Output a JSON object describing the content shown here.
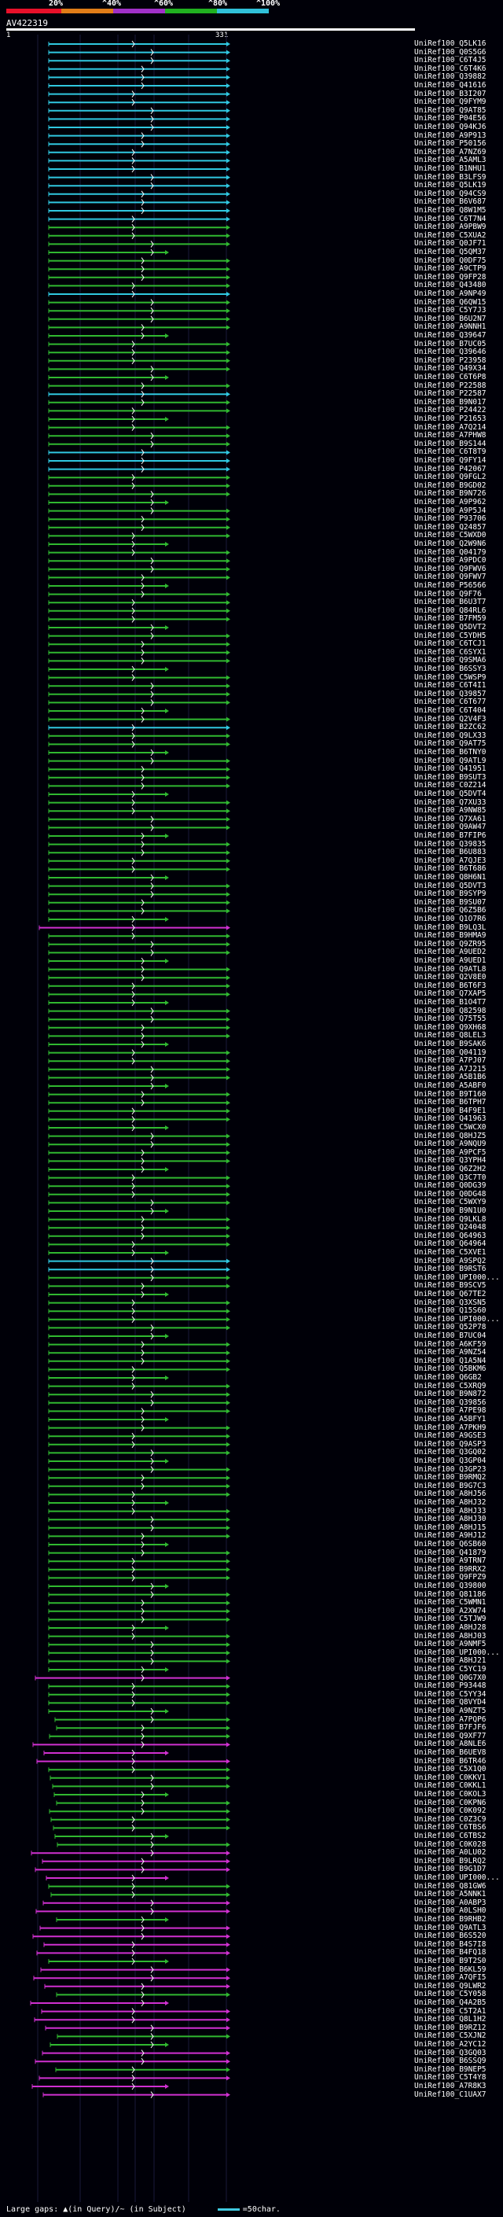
{
  "scale": {
    "labels": [
      "20%",
      "^40%",
      "^60%",
      "^80%",
      "^100%"
    ],
    "colors": [
      "#e8102a",
      "#e07c18",
      "#a030c8",
      "#20b020",
      "#30c0d8"
    ]
  },
  "query": {
    "id": "AV422319",
    "start": "1",
    "end": "331"
  },
  "colors": {
    "cyan": "#30c8e0",
    "green": "#30b830",
    "magenta": "#d030d0",
    "background": "#000008"
  },
  "hits": [
    {
      "label": "UniRef100_Q5LK16",
      "color": "cyan"
    },
    {
      "label": "UniRef100_Q0S5G6",
      "color": "cyan"
    },
    {
      "label": "UniRef100_C6T4J5",
      "color": "cyan"
    },
    {
      "label": "UniRef100_C6T4K6",
      "color": "cyan"
    },
    {
      "label": "UniRef100_Q39882",
      "color": "cyan"
    },
    {
      "label": "UniRef100_Q41616",
      "color": "cyan"
    },
    {
      "label": "UniRef100_B3I207",
      "color": "cyan"
    },
    {
      "label": "UniRef100_Q9FYM9",
      "color": "cyan"
    },
    {
      "label": "UniRef100_Q9AT85",
      "color": "cyan"
    },
    {
      "label": "UniRef100_P04E56",
      "color": "cyan"
    },
    {
      "label": "UniRef100_Q94KJ6",
      "color": "cyan"
    },
    {
      "label": "UniRef100_A9P913",
      "color": "cyan"
    },
    {
      "label": "UniRef100_P50156",
      "color": "cyan"
    },
    {
      "label": "UniRef100_A7NZ69",
      "color": "cyan"
    },
    {
      "label": "UniRef100_A5AML3",
      "color": "cyan"
    },
    {
      "label": "UniRef100_B1NHU1",
      "color": "cyan"
    },
    {
      "label": "UniRef100_B3LFS9",
      "color": "cyan"
    },
    {
      "label": "UniRef100_Q5LK19",
      "color": "cyan"
    },
    {
      "label": "UniRef100_Q94CS9",
      "color": "cyan"
    },
    {
      "label": "UniRef100_B6V687",
      "color": "cyan"
    },
    {
      "label": "UniRef100_Q8W1M5",
      "color": "cyan"
    },
    {
      "label": "UniRef100_C6T7N4",
      "color": "cyan"
    },
    {
      "label": "UniRef100_A9PBW9",
      "color": "green"
    },
    {
      "label": "UniRef100_C5XUA2",
      "color": "green"
    },
    {
      "label": "UniRef100_Q0JF71",
      "color": "green"
    },
    {
      "label": "UniRef100_Q5QM37",
      "color": "green"
    },
    {
      "label": "UniRef100_Q0DF75",
      "color": "green"
    },
    {
      "label": "UniRef100_A9CTP9",
      "color": "green"
    },
    {
      "label": "UniRef100_Q9FP28",
      "color": "green"
    },
    {
      "label": "UniRef100_Q43480",
      "color": "green"
    },
    {
      "label": "UniRef100_A9NP49",
      "color": "cyan"
    },
    {
      "label": "UniRef100_Q6QW15",
      "color": "green"
    },
    {
      "label": "UniRef100_C5Y7J3",
      "color": "green"
    },
    {
      "label": "UniRef100_B6U2N7",
      "color": "green"
    },
    {
      "label": "UniRef100_A9NNH1",
      "color": "green"
    },
    {
      "label": "UniRef100_Q39647",
      "color": "green"
    },
    {
      "label": "UniRef100_B7UC05",
      "color": "green"
    },
    {
      "label": "UniRef100_Q39646",
      "color": "green"
    },
    {
      "label": "UniRef100_P23958",
      "color": "green"
    },
    {
      "label": "UniRef100_Q49X34",
      "color": "green"
    },
    {
      "label": "UniRef100_C6T6P8",
      "color": "green"
    },
    {
      "label": "UniRef100_P22588",
      "color": "green"
    },
    {
      "label": "UniRef100_P22587",
      "color": "cyan"
    },
    {
      "label": "UniRef100_B9N017",
      "color": "green"
    },
    {
      "label": "UniRef100_P24422",
      "color": "green"
    },
    {
      "label": "UniRef100_P21653",
      "color": "green"
    },
    {
      "label": "UniRef100_A7Q214",
      "color": "green"
    },
    {
      "label": "UniRef100_A7PHW8",
      "color": "green"
    },
    {
      "label": "UniRef100_B9S144",
      "color": "green"
    },
    {
      "label": "UniRef100_C6T8T9",
      "color": "cyan"
    },
    {
      "label": "UniRef100_Q9FY14",
      "color": "cyan"
    },
    {
      "label": "UniRef100_P42067",
      "color": "cyan"
    },
    {
      "label": "UniRef100_Q9FGL2",
      "color": "green"
    },
    {
      "label": "UniRef100_B9GD02",
      "color": "green"
    },
    {
      "label": "UniRef100_B9N726",
      "color": "green"
    },
    {
      "label": "UniRef100_A9P962",
      "color": "green"
    },
    {
      "label": "UniRef100_A9P5J4",
      "color": "green"
    },
    {
      "label": "UniRef100_P93706",
      "color": "green"
    },
    {
      "label": "UniRef100_Q24857",
      "color": "green"
    },
    {
      "label": "UniRef100_C5WXD0",
      "color": "green"
    },
    {
      "label": "UniRef100_Q2W9N6",
      "color": "green"
    },
    {
      "label": "UniRef100_Q04179",
      "color": "green"
    },
    {
      "label": "UniRef100_A9PDC0",
      "color": "green"
    },
    {
      "label": "UniRef100_Q9FWV6",
      "color": "green"
    },
    {
      "label": "UniRef100_Q9FWV7",
      "color": "green"
    },
    {
      "label": "UniRef100_P56566",
      "color": "green"
    },
    {
      "label": "UniRef100_Q9F76",
      "color": "green"
    },
    {
      "label": "UniRef100_B6U3T7",
      "color": "green"
    },
    {
      "label": "UniRef100_Q84RL6",
      "color": "green"
    },
    {
      "label": "UniRef100_B7FM59",
      "color": "green"
    },
    {
      "label": "UniRef100_Q5DVT2",
      "color": "green"
    },
    {
      "label": "UniRef100_C5YDH5",
      "color": "green"
    },
    {
      "label": "UniRef100_C6TCJ1",
      "color": "green"
    },
    {
      "label": "UniRef100_C6SYX1",
      "color": "green"
    },
    {
      "label": "UniRef100_Q9SMA6",
      "color": "green"
    },
    {
      "label": "UniRef100_B6SSY3",
      "color": "green"
    },
    {
      "label": "UniRef100_C5WSP9",
      "color": "green"
    },
    {
      "label": "UniRef100_C6T4I1",
      "color": "green"
    },
    {
      "label": "UniRef100_Q39857",
      "color": "green"
    },
    {
      "label": "UniRef100_C6T677",
      "color": "green"
    },
    {
      "label": "UniRef100_C6T404",
      "color": "green"
    },
    {
      "label": "UniRef100_Q2V4F3",
      "color": "green"
    },
    {
      "label": "UniRef100_B2ZC62",
      "color": "cyan"
    },
    {
      "label": "UniRef100_Q9LX33",
      "color": "green"
    },
    {
      "label": "UniRef100_Q9AT75",
      "color": "green"
    },
    {
      "label": "UniRef100_B6TNY0",
      "color": "green"
    },
    {
      "label": "UniRef100_Q9ATL9",
      "color": "green"
    },
    {
      "label": "UniRef100_Q41951",
      "color": "green"
    },
    {
      "label": "UniRef100_B9SUT3",
      "color": "green"
    },
    {
      "label": "UniRef100_C0Z214",
      "color": "green"
    },
    {
      "label": "UniRef100_Q5DVT4",
      "color": "green"
    },
    {
      "label": "UniRef100_Q7XU33",
      "color": "green"
    },
    {
      "label": "UniRef100_A9NW85",
      "color": "green"
    },
    {
      "label": "UniRef100_Q7XA61",
      "color": "green"
    },
    {
      "label": "UniRef100_Q9AW47",
      "color": "green"
    },
    {
      "label": "UniRef100_B7FIP6",
      "color": "green"
    },
    {
      "label": "UniRef100_Q39835",
      "color": "green"
    },
    {
      "label": "UniRef100_B6U883",
      "color": "green"
    },
    {
      "label": "UniRef100_A7QJE3",
      "color": "green"
    },
    {
      "label": "UniRef100_B6T686",
      "color": "green"
    },
    {
      "label": "UniRef100_Q8H6N1",
      "color": "green"
    },
    {
      "label": "UniRef100_Q5DVT3",
      "color": "green"
    },
    {
      "label": "UniRef100_B9SYP9",
      "color": "green"
    },
    {
      "label": "UniRef100_B9SU07",
      "color": "green"
    },
    {
      "label": "UniRef100_Q6Z5B6",
      "color": "green"
    },
    {
      "label": "UniRef100_Q1O7R6",
      "color": "green"
    },
    {
      "label": "UniRef100_B9LQ3L",
      "color": "magenta"
    },
    {
      "label": "UniRef100_B9HMA9",
      "color": "green"
    },
    {
      "label": "UniRef100_Q9ZR95",
      "color": "green"
    },
    {
      "label": "UniRef100_A9UED2",
      "color": "green"
    },
    {
      "label": "UniRef100_A9UED1",
      "color": "green"
    },
    {
      "label": "UniRef100_Q9ATL8",
      "color": "green"
    },
    {
      "label": "UniRef100_Q2V8E0",
      "color": "green"
    },
    {
      "label": "UniRef100_B6T6F3",
      "color": "green"
    },
    {
      "label": "UniRef100_Q7XAP5",
      "color": "green"
    },
    {
      "label": "UniRef100_B1O4T7",
      "color": "green"
    },
    {
      "label": "UniRef100_Q82598",
      "color": "green"
    },
    {
      "label": "UniRef100_Q75T55",
      "color": "green"
    },
    {
      "label": "UniRef100_Q9XH68",
      "color": "green"
    },
    {
      "label": "UniRef100_Q8LEL3",
      "color": "green"
    },
    {
      "label": "UniRef100_B9SAK6",
      "color": "green"
    },
    {
      "label": "UniRef100_Q04119",
      "color": "green"
    },
    {
      "label": "UniRef100_A7PJ07",
      "color": "green"
    },
    {
      "label": "UniRef100_A7J215",
      "color": "green"
    },
    {
      "label": "UniRef100_A5B1B6",
      "color": "green"
    },
    {
      "label": "UniRef100_A5ABF0",
      "color": "green"
    },
    {
      "label": "UniRef100_B9T160",
      "color": "green"
    },
    {
      "label": "UniRef100_B6TPH7",
      "color": "green"
    },
    {
      "label": "UniRef100_B4F9E1",
      "color": "green"
    },
    {
      "label": "UniRef100_Q41963",
      "color": "green"
    },
    {
      "label": "UniRef100_C5WCX0",
      "color": "green"
    },
    {
      "label": "UniRef100_Q8HJZ5",
      "color": "green"
    },
    {
      "label": "UniRef100_A9NQU9",
      "color": "green"
    },
    {
      "label": "UniRef100_A9PCF5",
      "color": "green"
    },
    {
      "label": "UniRef100_Q3YPH4",
      "color": "green"
    },
    {
      "label": "UniRef100_Q6Z2H2",
      "color": "green"
    },
    {
      "label": "UniRef100_Q3C7T0",
      "color": "green"
    },
    {
      "label": "UniRef100_Q0DG39",
      "color": "green"
    },
    {
      "label": "UniRef100_Q0DG48",
      "color": "green"
    },
    {
      "label": "UniRef100_C5WXY9",
      "color": "green"
    },
    {
      "label": "UniRef100_B9N1U0",
      "color": "green"
    },
    {
      "label": "UniRef100_Q9LKL8",
      "color": "green"
    },
    {
      "label": "UniRef100_Q24048",
      "color": "green"
    },
    {
      "label": "UniRef100_Q64963",
      "color": "green"
    },
    {
      "label": "UniRef100_Q64964",
      "color": "green"
    },
    {
      "label": "UniRef100_C5XVE1",
      "color": "green"
    },
    {
      "label": "UniRef100_A9SPQ2",
      "color": "cyan"
    },
    {
      "label": "UniRef100_B9RST6",
      "color": "cyan"
    },
    {
      "label": "UniRef100_UPI000...",
      "color": "green"
    },
    {
      "label": "UniRef100_B9SCV5",
      "color": "green"
    },
    {
      "label": "UniRef100_Q67TE2",
      "color": "green"
    },
    {
      "label": "UniRef100_Q3XSN5",
      "color": "green"
    },
    {
      "label": "UniRef100_Q15S60",
      "color": "green"
    },
    {
      "label": "UniRef100_UPI000...",
      "color": "green"
    },
    {
      "label": "UniRef100_Q52P78",
      "color": "green"
    },
    {
      "label": "UniRef100_B7UC04",
      "color": "green"
    },
    {
      "label": "UniRef100_A6KF59",
      "color": "green"
    },
    {
      "label": "UniRef100_A9NZ54",
      "color": "green"
    },
    {
      "label": "UniRef100_Q1A5N4",
      "color": "green"
    },
    {
      "label": "UniRef100_Q5BKM6",
      "color": "green"
    },
    {
      "label": "UniRef100_Q6GB2",
      "color": "green"
    },
    {
      "label": "UniRef100_C5XRQ9",
      "color": "green"
    },
    {
      "label": "UniRef100_B9N872",
      "color": "green"
    },
    {
      "label": "UniRef100_Q39856",
      "color": "green"
    },
    {
      "label": "UniRef100_A7PE98",
      "color": "green"
    },
    {
      "label": "UniRef100_A5BFY1",
      "color": "green"
    },
    {
      "label": "UniRef100_A7PKH9",
      "color": "green"
    },
    {
      "label": "UniRef100_A9GSE3",
      "color": "green"
    },
    {
      "label": "UniRef100_Q9ASP3",
      "color": "green"
    },
    {
      "label": "UniRef100_Q3GQ02",
      "color": "green"
    },
    {
      "label": "UniRef100_Q3GP04",
      "color": "green"
    },
    {
      "label": "UniRef100_Q3GP23",
      "color": "green"
    },
    {
      "label": "UniRef100_B9RMQ2",
      "color": "green"
    },
    {
      "label": "UniRef100_B9G7C3",
      "color": "green"
    },
    {
      "label": "UniRef100_A8HJ56",
      "color": "green"
    },
    {
      "label": "UniRef100_A8HJ32",
      "color": "green"
    },
    {
      "label": "UniRef100_A8HJ33",
      "color": "green"
    },
    {
      "label": "UniRef100_A8HJ30",
      "color": "green"
    },
    {
      "label": "UniRef100_A8HJ15",
      "color": "green"
    },
    {
      "label": "UniRef100_A9HJ12",
      "color": "green"
    },
    {
      "label": "UniRef100_Q6SB60",
      "color": "green"
    },
    {
      "label": "UniRef100_Q41879",
      "color": "green"
    },
    {
      "label": "UniRef100_A9TRN7",
      "color": "green"
    },
    {
      "label": "UniRef100_B9RRX2",
      "color": "green"
    },
    {
      "label": "UniRef100_Q9FPZ9",
      "color": "green"
    },
    {
      "label": "UniRef100_Q39800",
      "color": "green"
    },
    {
      "label": "UniRef100_Q81186",
      "color": "green"
    },
    {
      "label": "UniRef100_C5WMN1",
      "color": "green"
    },
    {
      "label": "UniRef100_A2XW74",
      "color": "green"
    },
    {
      "label": "UniRef100_C5TJW9",
      "color": "green"
    },
    {
      "label": "UniRef100_A8HJ28",
      "color": "green"
    },
    {
      "label": "UniRef100_A8HJ03",
      "color": "green"
    },
    {
      "label": "UniRef100_A9NMF5",
      "color": "green"
    },
    {
      "label": "UniRef100_UPI000...",
      "color": "green"
    },
    {
      "label": "UniRef100_A8HJ21",
      "color": "green"
    },
    {
      "label": "UniRef100_C5YC19",
      "color": "green"
    },
    {
      "label": "UniRef100_Q0G7X0",
      "color": "magenta"
    },
    {
      "label": "UniRef100_P93448",
      "color": "green"
    },
    {
      "label": "UniRef100_C5YY34",
      "color": "green"
    },
    {
      "label": "UniRef100_Q8VYD4",
      "color": "green"
    },
    {
      "label": "UniRef100_A9NZT5",
      "color": "green"
    },
    {
      "label": "UniRef100_A7PQP6",
      "color": "green"
    },
    {
      "label": "UniRef100_B7FJF6",
      "color": "green"
    },
    {
      "label": "UniRef100_Q9XF77",
      "color": "green"
    },
    {
      "label": "UniRef100_A8NLE6",
      "color": "magenta"
    },
    {
      "label": "UniRef100_B6UEV8",
      "color": "magenta"
    },
    {
      "label": "UniRef100_B6TR46",
      "color": "magenta"
    },
    {
      "label": "UniRef100_C5X1Q0",
      "color": "green"
    },
    {
      "label": "UniRef100_C0KKV1",
      "color": "green"
    },
    {
      "label": "UniRef100_C0KKL1",
      "color": "green"
    },
    {
      "label": "UniRef100_C0KOL3",
      "color": "green"
    },
    {
      "label": "UniRef100_C0KPN6",
      "color": "green"
    },
    {
      "label": "UniRef100_C0K092",
      "color": "green"
    },
    {
      "label": "UniRef100_C0Z3C9",
      "color": "green"
    },
    {
      "label": "UniRef100_C6TBS6",
      "color": "green"
    },
    {
      "label": "UniRef100_C6TBS2",
      "color": "green"
    },
    {
      "label": "UniRef100_C0K028",
      "color": "green"
    },
    {
      "label": "UniRef100_A0LU02",
      "color": "magenta"
    },
    {
      "label": "UniRef100_B9LRQ2",
      "color": "magenta"
    },
    {
      "label": "UniRef100_B9G1D7",
      "color": "magenta"
    },
    {
      "label": "UniRef100_UPI000...",
      "color": "magenta"
    },
    {
      "label": "UniRef100_Q81GW6",
      "color": "green"
    },
    {
      "label": "UniRef100_A5NNK1",
      "color": "green"
    },
    {
      "label": "UniRef100_A0ABP3",
      "color": "magenta"
    },
    {
      "label": "UniRef100_A0LSH0",
      "color": "magenta"
    },
    {
      "label": "UniRef100_B9RHB2",
      "color": "green"
    },
    {
      "label": "UniRef100_Q9ATL3",
      "color": "magenta"
    },
    {
      "label": "UniRef100_B6S520",
      "color": "magenta"
    },
    {
      "label": "UniRef100_B4S7I8",
      "color": "magenta"
    },
    {
      "label": "UniRef100_B4FQ18",
      "color": "magenta"
    },
    {
      "label": "UniRef100_B9T2S0",
      "color": "green"
    },
    {
      "label": "UniRef100_B6KL59",
      "color": "magenta"
    },
    {
      "label": "UniRef100_A7QFI5",
      "color": "magenta"
    },
    {
      "label": "UniRef100_Q9LWR2",
      "color": "magenta"
    },
    {
      "label": "UniRef100_C5Y058",
      "color": "green"
    },
    {
      "label": "UniRef100_Q4A2B5",
      "color": "magenta"
    },
    {
      "label": "UniRef100_C5T2A1",
      "color": "magenta"
    },
    {
      "label": "UniRef100_Q8L1H2",
      "color": "magenta"
    },
    {
      "label": "UniRef100_B9RZ12",
      "color": "magenta"
    },
    {
      "label": "UniRef100_C5XJN2",
      "color": "green"
    },
    {
      "label": "UniRef100_A2YC12",
      "color": "green"
    },
    {
      "label": "UniRef100_Q3GQ03",
      "color": "magenta"
    },
    {
      "label": "UniRef100_B6SSQ9",
      "color": "magenta"
    },
    {
      "label": "UniRef100_B9NEP5",
      "color": "green"
    },
    {
      "label": "UniRef100_C5T4Y8",
      "color": "magenta"
    },
    {
      "label": "UniRef100_A7R8K3",
      "color": "magenta"
    },
    {
      "label": "UniRef100_C1UAX7",
      "color": "magenta"
    }
  ],
  "legend": {
    "text": "Large gaps: ▲(in Query)/~ (in Subject)",
    "scale_text": "=50char."
  }
}
